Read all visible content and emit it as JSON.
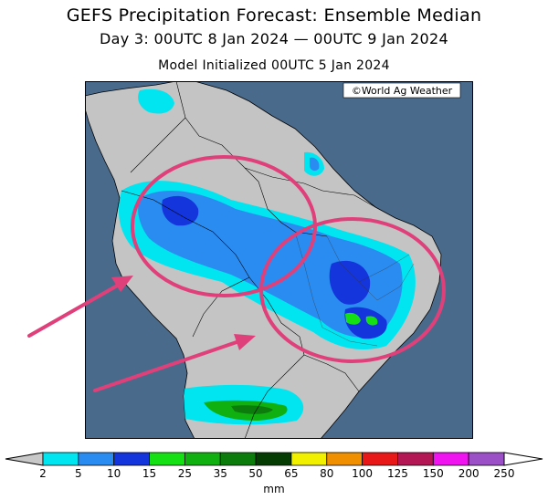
{
  "title": "GEFS Precipitation Forecast: Ensemble Median",
  "subtitle": "Day 3: 00UTC 8 Jan 2024 — 00UTC 9 Jan 2024",
  "init_line": "Model Initialized 00UTC 5 Jan 2024",
  "copyright": "©World Ag Weather",
  "colors": {
    "ocean": "#4a6a8c",
    "land": "#c4c4c4",
    "annotation": "#e0407a"
  },
  "colorbar": {
    "unit": "mm",
    "ticks": [
      "2",
      "5",
      "10",
      "15",
      "25",
      "35",
      "50",
      "65",
      "80",
      "100",
      "125",
      "150",
      "200",
      "250"
    ],
    "colors": [
      "#00e5f0",
      "#2a8cf0",
      "#1434dc",
      "#14e014",
      "#10b010",
      "#0c7c0c",
      "#043c04",
      "#f0f000",
      "#f09000",
      "#e81818",
      "#b41854",
      "#f014f0",
      "#9c50c8"
    ],
    "below_color": "#c8c8c8",
    "above_color": "#ffffff"
  }
}
